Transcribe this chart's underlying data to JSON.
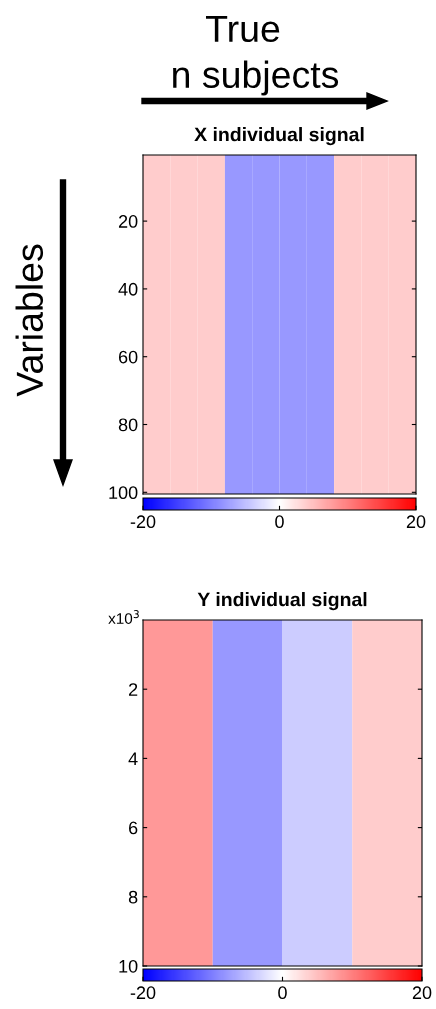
{
  "chart_data": [
    {
      "type": "heatmap",
      "title": "X individual signal",
      "annotations": [
        "True",
        "n subjects",
        "Variables"
      ],
      "categories": [
        null,
        null,
        null,
        null,
        null,
        null,
        null,
        null,
        null,
        null
      ],
      "cells": [
        [
          4,
          4,
          4,
          -8,
          -8,
          -8,
          -8,
          4,
          4,
          4
        ]
      ],
      "ylim": [
        100.5,
        0.5
      ],
      "yticks": [
        20,
        40,
        60,
        80,
        100
      ],
      "clim": [
        -20,
        20
      ],
      "cticks": [
        -20,
        0,
        20
      ]
    },
    {
      "type": "heatmap",
      "title": "Y individual signal",
      "annotations": [
        "x10$^{3}$"
      ],
      "categories": [
        null,
        null,
        null,
        null
      ],
      "cells": [
        [
          8,
          -8,
          -4,
          4
        ]
      ],
      "ylim": [
        10,
        0
      ],
      "yticks": [
        2,
        4,
        6,
        8,
        10
      ],
      "clim": [
        -20,
        20
      ],
      "cticks": [
        -20,
        0,
        20
      ]
    }
  ]
}
